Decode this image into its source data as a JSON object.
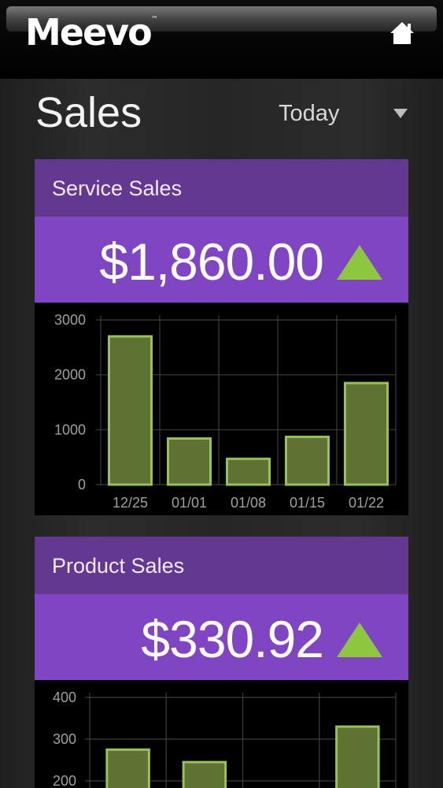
{
  "app": {
    "brand": "Meevo",
    "brand_tm": "™"
  },
  "header": {
    "home_icon": "home-icon"
  },
  "page": {
    "title": "Sales",
    "range_selected": "Today"
  },
  "service_sales": {
    "title": "Service Sales",
    "value": "$1,860.00",
    "trend": "up",
    "trend_color": "#8dc63f"
  },
  "product_sales": {
    "title": "Product Sales",
    "value": "$330.92",
    "trend": "up",
    "trend_color": "#8dc63f"
  },
  "colors": {
    "title_bar": "#633890",
    "value_bar": "#7f45c2",
    "bar_fill": "#5d7233",
    "bar_stroke": "#98c257"
  },
  "chart_data": [
    {
      "type": "bar",
      "categories": [
        "12/25",
        "01/01",
        "01/08",
        "01/15",
        "01/22"
      ],
      "values": [
        2700,
        840,
        470,
        870,
        1850
      ],
      "yticks": [
        0,
        1000,
        2000,
        3000
      ],
      "ylim": [
        0,
        3000
      ],
      "grid": true
    },
    {
      "type": "bar",
      "categories": [
        "",
        "",
        "",
        ""
      ],
      "values": [
        275,
        245,
        "",
        330
      ],
      "yticks": [
        200,
        300,
        400
      ],
      "ylim": [
        200,
        400
      ],
      "grid": true
    }
  ]
}
